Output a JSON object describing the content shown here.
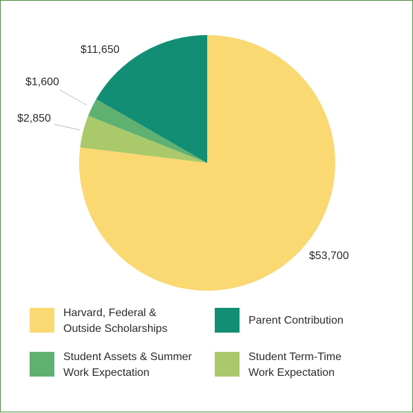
{
  "chart_data": {
    "type": "pie",
    "start_angle_deg": 0,
    "direction": "clockwise",
    "slices": [
      {
        "label": "Harvard, Federal &\nOutside Scholarships",
        "value": 53700,
        "value_label": "$53,700",
        "color": "#fad872"
      },
      {
        "label": "Student Term-Time\nWork Expectation",
        "value": 2850,
        "value_label": "$2,850",
        "color": "#a9c96a"
      },
      {
        "label": "Student Assets & Summer\nWork Expectation",
        "value": 1600,
        "value_label": "$1,600",
        "color": "#5fb172"
      },
      {
        "label": "Parent Contribution",
        "value": 11650,
        "value_label": "$11,650",
        "color": "#128e74"
      }
    ],
    "legend_order": [
      0,
      3,
      2,
      1
    ],
    "legend_placement": "bottom"
  }
}
